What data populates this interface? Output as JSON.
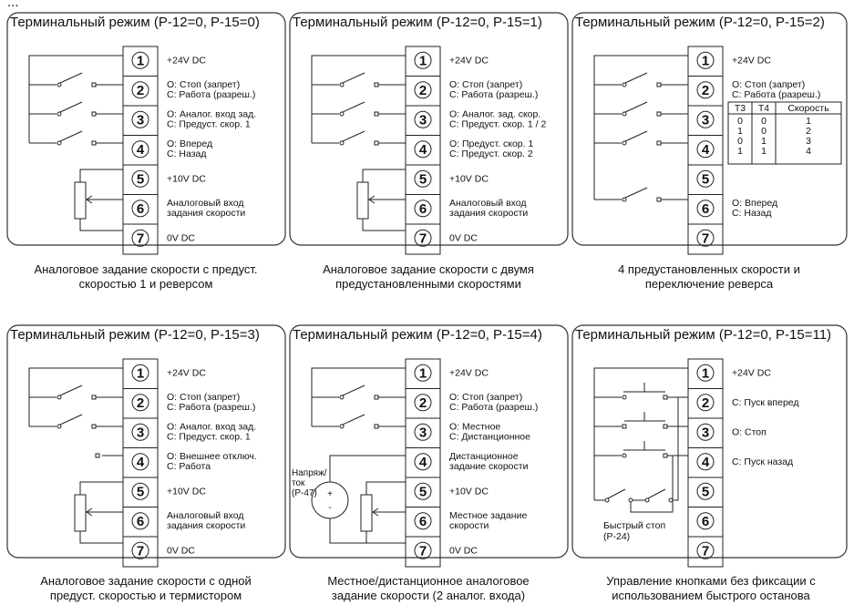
{
  "header_cut": "...",
  "panels": [
    {
      "title": "Терминальный режим (P-12=0, P-15=0)",
      "caption": [
        "Аналоговое задание скорости с предуст.",
        "скоростью 1 и реверсом"
      ],
      "labels": [
        [
          "+24V DC"
        ],
        [
          "O: Стоп (запрет)",
          "C: Работа (разреш.)"
        ],
        [
          "O: Аналог. вход зад.",
          "C: Предуст. скор. 1"
        ],
        [
          "O: Вперед",
          "C: Назад"
        ],
        [
          "+10V DC"
        ],
        [
          "Аналоговый вход",
          "задания скорости"
        ],
        [
          "0V DC"
        ]
      ]
    },
    {
      "title": "Терминальный режим (P-12=0, P-15=1)",
      "caption": [
        "Аналоговое задание скорости с двумя",
        "предустановленными скоростями"
      ],
      "labels": [
        [
          "+24V DC"
        ],
        [
          "O: Стоп (запрет)",
          "C: Работа (разреш.)"
        ],
        [
          "O: Аналог. зад. скор.",
          "C: Предуст. скор. 1 / 2"
        ],
        [
          "O: Предуст. скор. 1",
          "C: Предуст. скор. 2"
        ],
        [
          "+10V DC"
        ],
        [
          "Аналоговый вход",
          "задания скорости"
        ],
        [
          "0V DC"
        ]
      ]
    },
    {
      "title": "Терминальный режим (P-12=0, P-15=2)",
      "caption": [
        "4 предустановленных скорости и",
        "переключение реверса"
      ],
      "labels": [
        [
          "+24V DC"
        ],
        [
          "O: Стоп (запрет)",
          "C: Работа (разреш.)"
        ],
        [],
        [],
        [],
        [
          "O: Вперед",
          "C: Назад"
        ],
        []
      ],
      "table": {
        "headers": [
          "T3",
          "T4",
          "Скорость"
        ],
        "rows": [
          [
            "0",
            "0",
            "1"
          ],
          [
            "1",
            "0",
            "2"
          ],
          [
            "0",
            "1",
            "3"
          ],
          [
            "1",
            "1",
            "4"
          ]
        ]
      }
    },
    {
      "title": "Терминальный режим (P-12=0, P-15=3)",
      "caption": [
        "Аналоговое задание скорости с одной",
        "предуст. скоростью и термистором"
      ],
      "labels": [
        [
          "+24V DC"
        ],
        [
          "O: Стоп (запрет)",
          "C: Работа (разреш.)"
        ],
        [
          "O: Аналог. вход зад.",
          "C: Предуст. скор. 1"
        ],
        [
          "O: Внешнее отключ.",
          "C: Работа"
        ],
        [
          "+10V DC"
        ],
        [
          "Аналоговый вход",
          "задания скорости"
        ],
        [
          "0V DC"
        ]
      ]
    },
    {
      "title": "Терминальный режим (P-12=0, P-15=4)",
      "caption": [
        "Местное/дистанционное аналоговое",
        "задание скорости (2 аналог. входа)"
      ],
      "labels": [
        [
          "+24V DC"
        ],
        [
          "O: Стоп (запрет)",
          "C: Работа (разреш.)"
        ],
        [
          "O: Местное",
          "C: Дистанционное"
        ],
        [
          "Дистанционное",
          "задание скорости"
        ],
        [
          "+10V DC"
        ],
        [
          "Местное задание",
          "скорости"
        ],
        [
          "0V DC"
        ]
      ],
      "source_label": [
        "Напряж/",
        "ток",
        "(P-47)"
      ]
    },
    {
      "title": "Терминальный режим (P-12=0, P-15=11)",
      "caption": [
        "Управление кнопками без фиксации с",
        "использованием быстрого останова"
      ],
      "labels": [
        [
          "+24V DC"
        ],
        [
          "C: Пуск вперед"
        ],
        [
          "O: Стоп"
        ],
        [
          "C: Пуск назад"
        ],
        [],
        [],
        []
      ],
      "fast_stop_label": [
        "Быстрый стоп",
        "(P-24)"
      ]
    }
  ],
  "terminal_numbers": [
    "1",
    "2",
    "3",
    "4",
    "5",
    "6",
    "7"
  ]
}
